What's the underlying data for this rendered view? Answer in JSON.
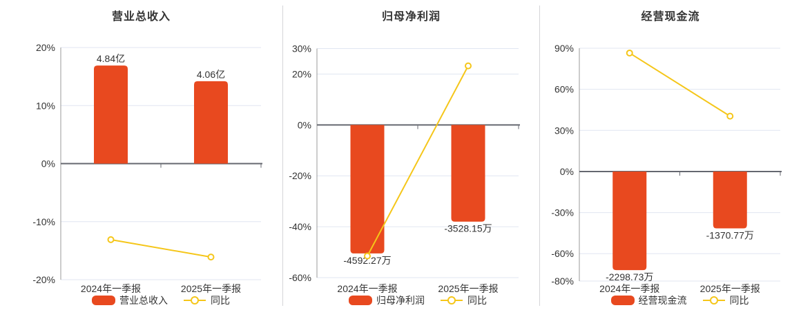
{
  "colors": {
    "bar": "#e8491f",
    "line": "#f5c619",
    "grid": "#e0e6f1",
    "zero_line": "#64676f",
    "axis_line": "#999999",
    "text": "#333333",
    "divider": "#d4d4d8",
    "marker_fill": "#ffffff"
  },
  "chart_data": [
    {
      "type": "bar+line combo",
      "title": "营业总收入",
      "categories": [
        "2024年一季报",
        "2025年一季报"
      ],
      "bar_series": {
        "name": "营业总收入",
        "labels": [
          "4.84亿",
          "4.06亿"
        ],
        "plot_pct": [
          16.9,
          14.2
        ],
        "label_position": "above"
      },
      "line_series": {
        "name": "同比",
        "values_pct": [
          -13.1,
          -16.1
        ]
      },
      "y_ticks": [
        20,
        10,
        0,
        -10,
        -20
      ],
      "ylim": [
        -20,
        20
      ],
      "y_unit": "%",
      "grid": true,
      "legend_position": "bottom"
    },
    {
      "type": "bar+line combo",
      "title": "归母净利润",
      "categories": [
        "2024年一季报",
        "2025年一季报"
      ],
      "bar_series": {
        "name": "归母净利润",
        "labels": [
          "-4592.27万",
          "-3528.15万"
        ],
        "plot_pct": [
          -50.5,
          -38
        ],
        "label_position": "below"
      },
      "line_series": {
        "name": "同比",
        "values_pct": [
          -51.5,
          23.2
        ]
      },
      "y_ticks": [
        30,
        20,
        0,
        -20,
        -40,
        -60
      ],
      "ylim": [
        -60,
        30
      ],
      "y_unit": "%",
      "grid": true,
      "legend_position": "bottom"
    },
    {
      "type": "bar+line combo",
      "title": "经营现金流",
      "categories": [
        "2024年一季报",
        "2025年一季报"
      ],
      "bar_series": {
        "name": "经营现金流",
        "labels": [
          "-2298.73万",
          "-1370.77万"
        ],
        "plot_pct": [
          -72,
          -41.5
        ],
        "label_position": "below"
      },
      "line_series": {
        "name": "同比",
        "values_pct": [
          86.5,
          40.4
        ]
      },
      "y_ticks": [
        90,
        60,
        30,
        0,
        -30,
        -60,
        -80
      ],
      "ylim": [
        -80,
        90
      ],
      "y_unit": "%",
      "grid": true,
      "legend_position": "bottom"
    }
  ]
}
